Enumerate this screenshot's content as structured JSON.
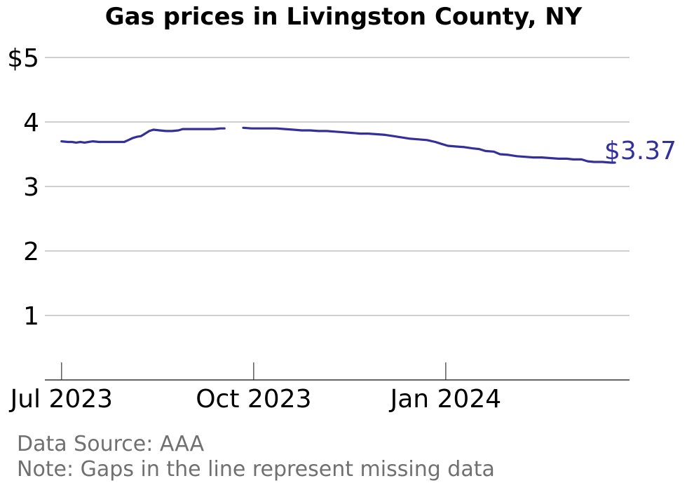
{
  "chart_data": {
    "type": "line",
    "title": "Gas prices in Livingston County, NY",
    "xlabel": "",
    "ylabel": "",
    "x_tick_labels": [
      "Jul 2023",
      "Oct 2023",
      "Jan 2024"
    ],
    "x_ticks": [
      "2023-07-01",
      "2023-10-01",
      "2024-01-01"
    ],
    "y_tick_labels": [
      "1",
      "2",
      "3",
      "4",
      "$5"
    ],
    "y_ticks": [
      1,
      2,
      3,
      4,
      5
    ],
    "ylim": [
      0,
      5
    ],
    "xlim": [
      "2023-06-23",
      "2024-03-29"
    ],
    "grid": "horizontal",
    "line_color": "#34309a",
    "end_label": "$3.37",
    "series": [
      {
        "segments": [
          [
            [
              "2023-07-01",
              3.7
            ],
            [
              "2023-07-04",
              3.69
            ],
            [
              "2023-07-06",
              3.69
            ],
            [
              "2023-07-08",
              3.68
            ],
            [
              "2023-07-10",
              3.69
            ],
            [
              "2023-07-12",
              3.68
            ],
            [
              "2023-07-14",
              3.69
            ],
            [
              "2023-07-16",
              3.7
            ],
            [
              "2023-07-19",
              3.69
            ],
            [
              "2023-07-22",
              3.69
            ],
            [
              "2023-07-25",
              3.69
            ],
            [
              "2023-07-28",
              3.69
            ],
            [
              "2023-07-31",
              3.69
            ],
            [
              "2023-08-02",
              3.72
            ],
            [
              "2023-08-04",
              3.75
            ],
            [
              "2023-08-06",
              3.77
            ],
            [
              "2023-08-08",
              3.78
            ],
            [
              "2023-08-10",
              3.82
            ],
            [
              "2023-08-12",
              3.86
            ],
            [
              "2023-08-14",
              3.88
            ],
            [
              "2023-08-17",
              3.87
            ],
            [
              "2023-08-20",
              3.86
            ],
            [
              "2023-08-23",
              3.86
            ],
            [
              "2023-08-26",
              3.87
            ],
            [
              "2023-08-28",
              3.89
            ],
            [
              "2023-08-31",
              3.89
            ],
            [
              "2023-09-04",
              3.89
            ],
            [
              "2023-09-08",
              3.89
            ],
            [
              "2023-09-12",
              3.89
            ],
            [
              "2023-09-15",
              3.9
            ],
            [
              "2023-09-17",
              3.9
            ]
          ],
          [
            [
              "2023-09-26",
              3.91
            ],
            [
              "2023-09-30",
              3.9
            ],
            [
              "2023-10-04",
              3.9
            ],
            [
              "2023-10-08",
              3.9
            ],
            [
              "2023-10-12",
              3.9
            ],
            [
              "2023-10-16",
              3.89
            ],
            [
              "2023-10-20",
              3.88
            ],
            [
              "2023-10-24",
              3.87
            ],
            [
              "2023-10-28",
              3.87
            ],
            [
              "2023-11-01",
              3.86
            ],
            [
              "2023-11-05",
              3.86
            ],
            [
              "2023-11-09",
              3.85
            ],
            [
              "2023-11-13",
              3.84
            ],
            [
              "2023-11-17",
              3.83
            ],
            [
              "2023-11-21",
              3.82
            ],
            [
              "2023-11-25",
              3.82
            ],
            [
              "2023-11-29",
              3.81
            ],
            [
              "2023-12-03",
              3.8
            ],
            [
              "2023-12-07",
              3.78
            ],
            [
              "2023-12-11",
              3.76
            ],
            [
              "2023-12-15",
              3.74
            ],
            [
              "2023-12-19",
              3.73
            ],
            [
              "2023-12-23",
              3.72
            ],
            [
              "2023-12-27",
              3.69
            ],
            [
              "2023-12-30",
              3.66
            ],
            [
              "2024-01-02",
              3.63
            ],
            [
              "2024-01-06",
              3.62
            ],
            [
              "2024-01-10",
              3.61
            ],
            [
              "2024-01-14",
              3.59
            ],
            [
              "2024-01-17",
              3.58
            ],
            [
              "2024-01-20",
              3.55
            ],
            [
              "2024-01-24",
              3.54
            ],
            [
              "2024-01-27",
              3.5
            ],
            [
              "2024-01-31",
              3.49
            ],
            [
              "2024-02-04",
              3.47
            ],
            [
              "2024-02-08",
              3.46
            ],
            [
              "2024-02-12",
              3.45
            ],
            [
              "2024-02-16",
              3.45
            ],
            [
              "2024-02-20",
              3.44
            ],
            [
              "2024-02-24",
              3.43
            ],
            [
              "2024-02-28",
              3.43
            ],
            [
              "2024-03-02",
              3.42
            ],
            [
              "2024-03-06",
              3.42
            ],
            [
              "2024-03-09",
              3.39
            ],
            [
              "2024-03-12",
              3.38
            ],
            [
              "2024-03-16",
              3.38
            ],
            [
              "2024-03-20",
              3.37
            ],
            [
              "2024-03-22",
              3.37
            ]
          ]
        ]
      }
    ]
  },
  "footer": {
    "source": "Data Source: AAA",
    "note": "Note: Gaps in the line represent missing data"
  }
}
